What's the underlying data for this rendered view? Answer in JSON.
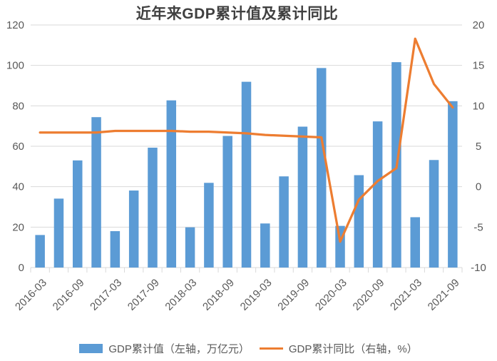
{
  "chart_data": {
    "type": "bar",
    "title": "近年来GDP累计值及累计同比",
    "categories": [
      "2016-03",
      "2016-06",
      "2016-09",
      "2016-12",
      "2017-03",
      "2017-06",
      "2017-09",
      "2017-12",
      "2018-03",
      "2018-06",
      "2018-09",
      "2018-12",
      "2019-03",
      "2019-06",
      "2019-09",
      "2019-12",
      "2020-03",
      "2020-06",
      "2020-09",
      "2020-12",
      "2021-03",
      "2021-06",
      "2021-09"
    ],
    "x_axis": {
      "visible_tick_labels": [
        "2016-03",
        "2016-09",
        "2017-03",
        "2017-09",
        "2018-03",
        "2018-09",
        "2019-03",
        "2019-09",
        "2020-03",
        "2020-09",
        "2021-03",
        "2021-09"
      ],
      "tick_every": 2,
      "label_rotation_deg": -45
    },
    "series": [
      {
        "name": "GDP累计值（左轴，万亿元）",
        "chart_type": "bar",
        "axis": "left",
        "color": "#5B9BD5",
        "values": [
          16.1,
          34.1,
          53.0,
          74.4,
          18.0,
          38.1,
          59.3,
          82.7,
          19.9,
          41.9,
          65.1,
          91.9,
          21.8,
          45.1,
          69.7,
          98.7,
          20.6,
          45.7,
          72.3,
          101.6,
          24.9,
          53.2,
          82.3
        ]
      },
      {
        "name": "GDP累计同比（右轴，%）",
        "chart_type": "line",
        "axis": "right",
        "color": "#ED7D31",
        "values": [
          6.7,
          6.7,
          6.7,
          6.7,
          6.9,
          6.9,
          6.9,
          6.9,
          6.8,
          6.8,
          6.7,
          6.6,
          6.4,
          6.3,
          6.2,
          6.1,
          -6.8,
          -1.6,
          0.7,
          2.3,
          18.3,
          12.7,
          9.8
        ]
      }
    ],
    "left_axis": {
      "min": 0,
      "max": 120,
      "step": 20,
      "tick_labels": [
        "0",
        "20",
        "40",
        "60",
        "80",
        "100",
        "120"
      ]
    },
    "right_axis": {
      "min": -10,
      "max": 20,
      "step": 5,
      "tick_labels": [
        "-10",
        "-5",
        "0",
        "5",
        "10",
        "15",
        "20"
      ]
    },
    "grid": true,
    "legend_position": "bottom",
    "colors": {
      "bar": "#5B9BD5",
      "line": "#ED7D31",
      "grid": "#D9D9D9",
      "axis_text": "#595959",
      "title_text": "#404040",
      "background": "#FFFFFF"
    }
  },
  "legend": {
    "items": [
      {
        "label": "GDP累计值（左轴，万亿元）",
        "color": "#5B9BD5"
      },
      {
        "label": "GDP累计同比（右轴，%）",
        "color": "#ED7D31"
      }
    ]
  }
}
